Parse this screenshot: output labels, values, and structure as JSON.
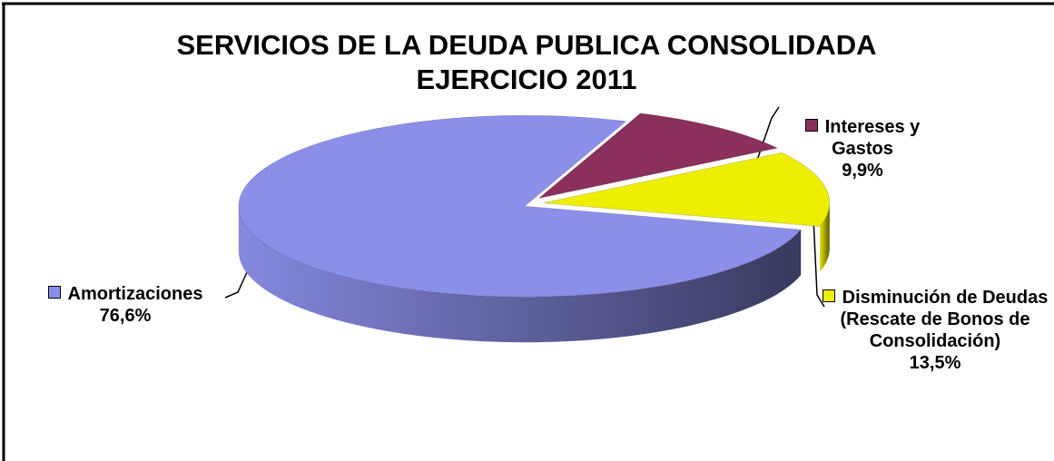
{
  "chart_data": {
    "type": "pie3d",
    "title": [
      "SERVICIOS DE LA DEUDA PUBLICA CONSOLIDADA",
      "EJERCICIO 2011"
    ],
    "categories": [
      "Amortizaciones",
      "Intereses y Gastos",
      "Disminución de Deudas (Rescate de Bonos de Consolidación)"
    ],
    "values": [
      76.6,
      9.9,
      13.5
    ],
    "value_labels": [
      "76,6%",
      "9,9%",
      "13,5%"
    ],
    "colors": [
      "#8c8fea",
      "#8b2f5c",
      "#eeee00"
    ]
  }
}
